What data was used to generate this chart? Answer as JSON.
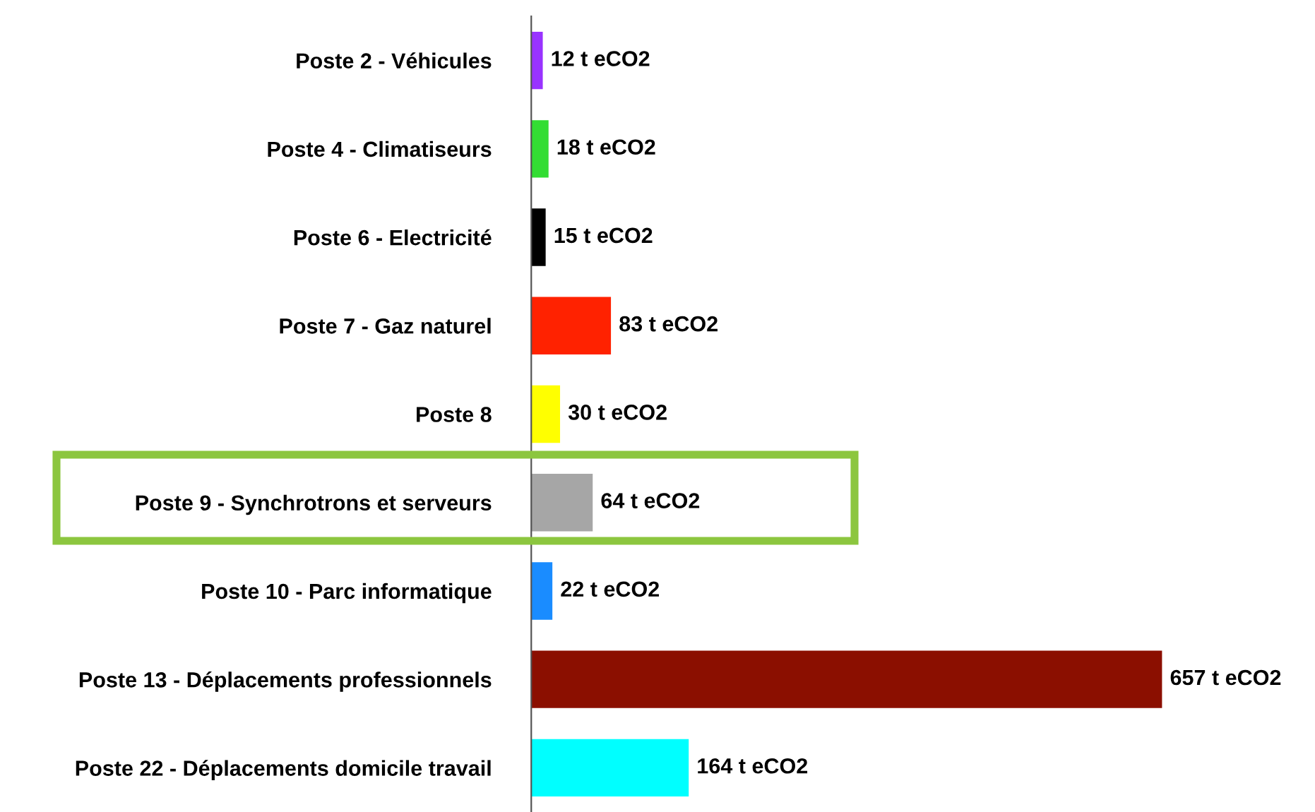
{
  "chart_data": {
    "type": "bar",
    "orientation": "horizontal",
    "categories": [
      "Poste 2 - Véhicules",
      "Poste 4 - Climatiseurs",
      "Poste 6 - Electricité",
      "Poste 7 - Gaz naturel",
      "Poste 8",
      "Poste 9 - Synchrotrons et serveurs",
      "Poste 10 - Parc informatique",
      "Poste 13 - Déplacements professionnels",
      "Poste 22 - Déplacements domicile travail"
    ],
    "values": [
      12,
      18,
      15,
      83,
      30,
      64,
      22,
      657,
      164
    ],
    "colors": [
      "#9933ff",
      "#33dd33",
      "#000000",
      "#ff2200",
      "#ffff00",
      "#a6a6a6",
      "#1a8cff",
      "#8b0f00",
      "#00ffff"
    ],
    "value_labels": [
      "12 t eCO2",
      "18 t eCO2",
      "15 t eCO2",
      "83 t eCO2",
      "30 t eCO2",
      "64 t eCO2",
      "22 t eCO2",
      "657 t eCO2",
      "164 t eCO2"
    ],
    "grid": false,
    "legend": false
  }
}
